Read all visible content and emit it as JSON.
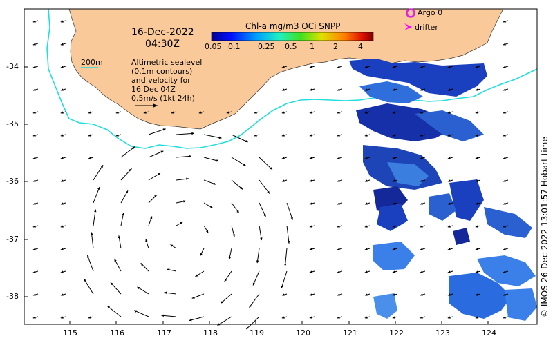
{
  "header": {
    "date": "16-Dec-2022",
    "time": "04:30Z"
  },
  "colorbar": {
    "title": "Chl-a mg/m3 OCi SNPP",
    "ticks": [
      "0.05",
      "0.1",
      "0.25",
      "0.5",
      "1",
      "2",
      "4"
    ]
  },
  "legend": {
    "argo": "Argo 0",
    "drifter": "drifter",
    "argo_color": "#e020e0",
    "drifter_color": "#ff00ff"
  },
  "contour_label": "200m",
  "contour_color": "#22dddd",
  "annotation": {
    "line1": "Altimetric sealevel",
    "line2": "(0.1m contours)",
    "line3": "and velocity for",
    "line4": "16 Dec 04Z",
    "line5": "0.5m/s (1kt 24h)"
  },
  "credit": "© IMOS 26-Dec-2022 13:01:57 Hobart time",
  "axes": {
    "x_ticks": [
      "115",
      "116",
      "117",
      "118",
      "119",
      "120",
      "121",
      "122",
      "123",
      "124"
    ],
    "y_ticks": [
      "-34",
      "-35",
      "-36",
      "-37",
      "-38"
    ]
  },
  "colors": {
    "land": "#f9c99a",
    "ocean": "#ffffff"
  }
}
